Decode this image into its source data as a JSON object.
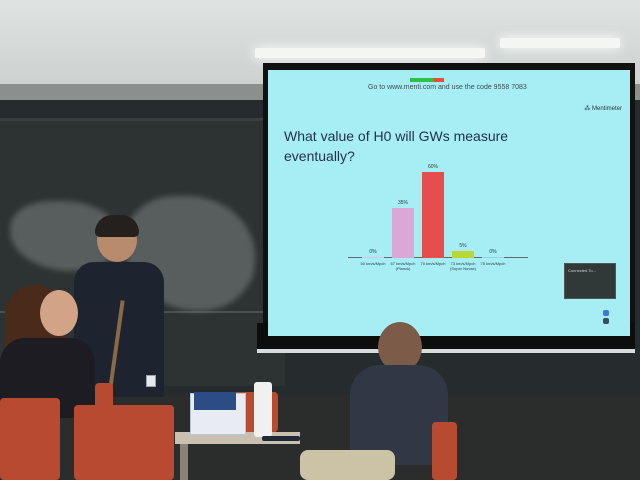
{
  "slide": {
    "url_text": "Go to www.menti.com and use the code 9558 7083",
    "brand": "Mentimeter",
    "question": "What value of H0 will GWs measure eventually?",
    "thumbnail_text": "Connected To..."
  },
  "chart_data": {
    "type": "bar",
    "categories": [
      "50 km/s/Mpch",
      "67 km/s/Mpch (Planck)",
      "70 km/s/Mpch",
      "73 km/s/Mpch (Super Novae)",
      "75 km/s/Mpch"
    ],
    "values": [
      0,
      35,
      60,
      5,
      0
    ],
    "labels": [
      "0%",
      "35%",
      "60%",
      "5%",
      "0%"
    ],
    "colors": [
      "#d8c5e6",
      "#d9a8d4",
      "#e64d4d",
      "#b8d83a",
      "#8fd7df"
    ],
    "title": "What value of H0 will GWs measure eventually?",
    "xlabel": "",
    "ylabel": "",
    "ylim": [
      0,
      60
    ]
  }
}
